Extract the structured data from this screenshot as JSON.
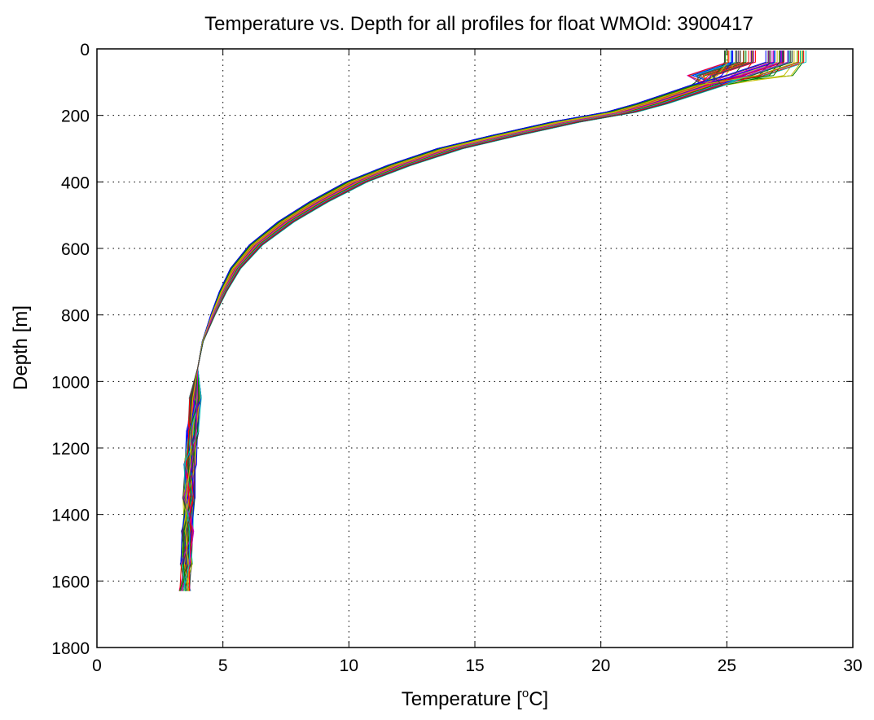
{
  "chart_data": {
    "type": "line",
    "title": "Temperature vs. Depth for all profiles for float WMOId: 3900417",
    "xlabel_prefix": "Temperature [",
    "xlabel_sup": "o",
    "xlabel_suffix": "C]",
    "ylabel": "Depth [m]",
    "xlim": [
      0,
      30
    ],
    "ylim": [
      0,
      1800
    ],
    "y_reversed": true,
    "grid": true,
    "grid_style": "dotted",
    "x_ticks": [
      0,
      5,
      10,
      15,
      20,
      25,
      30
    ],
    "x_tick_labels": [
      "0",
      "5",
      "10",
      "15",
      "20",
      "25",
      "30"
    ],
    "y_ticks": [
      0,
      200,
      400,
      600,
      800,
      1000,
      1200,
      1400,
      1600,
      1800
    ],
    "y_tick_labels": [
      "0",
      "200",
      "400",
      "600",
      "800",
      "1000",
      "1200",
      "1400",
      "1600",
      "1800"
    ],
    "series_colors": [
      "#0000ff",
      "#008000",
      "#ff0000",
      "#00bfbf",
      "#bf00bf",
      "#bfbf00",
      "#404040"
    ],
    "profile_count": 70,
    "reference_profile": {
      "x": [
        26.6,
        26.6,
        26.2,
        24.2,
        23.0,
        22.0,
        20.8,
        18.6,
        16.2,
        14.0,
        12.0,
        10.3,
        8.8,
        7.5,
        6.3,
        5.5,
        5.0,
        4.6,
        4.2,
        4.0,
        3.9,
        3.8,
        3.7,
        3.65,
        3.6,
        3.55,
        3.5
      ],
      "y": [
        5,
        40,
        80,
        110,
        140,
        165,
        190,
        220,
        260,
        300,
        350,
        400,
        460,
        520,
        590,
        660,
        730,
        800,
        880,
        960,
        1050,
        1150,
        1250,
        1350,
        1450,
        1550,
        1630
      ]
    }
  }
}
